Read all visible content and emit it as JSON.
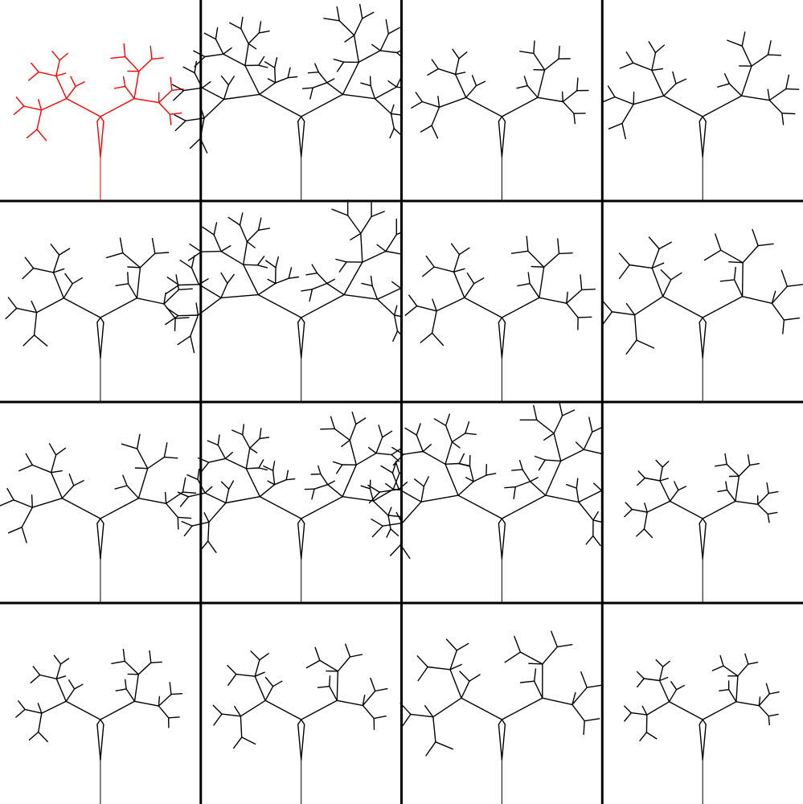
{
  "grid": {
    "rows": 4,
    "columns": 4
  },
  "colors": {
    "background": "#ffffff",
    "grid_line": "#000000",
    "selected_figure": "#ff0000",
    "figure": "#000000"
  },
  "figures": [
    {
      "index": 0,
      "selected": true,
      "depth": 3,
      "branch_angle_deg": 58,
      "ratio": 0.72,
      "spread": 0.65,
      "twist": 18
    },
    {
      "index": 1,
      "selected": false,
      "depth": 4,
      "branch_angle_deg": 46,
      "ratio": 0.76,
      "spread": 0.85,
      "twist": 34
    },
    {
      "index": 2,
      "selected": false,
      "depth": 3,
      "branch_angle_deg": 55,
      "ratio": 0.7,
      "spread": 0.7,
      "twist": 24
    },
    {
      "index": 3,
      "selected": false,
      "depth": 3,
      "branch_angle_deg": 52,
      "ratio": 0.71,
      "spread": 0.78,
      "twist": 28
    },
    {
      "index": 4,
      "selected": false,
      "depth": 3,
      "branch_angle_deg": 62,
      "ratio": 0.74,
      "spread": 0.72,
      "twist": 20
    },
    {
      "index": 5,
      "selected": false,
      "depth": 4,
      "branch_angle_deg": 44,
      "ratio": 0.77,
      "spread": 0.88,
      "twist": 38
    },
    {
      "index": 6,
      "selected": false,
      "depth": 3,
      "branch_angle_deg": 60,
      "ratio": 0.73,
      "spread": 0.74,
      "twist": 22
    },
    {
      "index": 7,
      "selected": false,
      "depth": 3,
      "branch_angle_deg": 66,
      "ratio": 0.75,
      "spread": 0.8,
      "twist": 16
    },
    {
      "index": 8,
      "selected": false,
      "depth": 3,
      "branch_angle_deg": 54,
      "ratio": 0.72,
      "spread": 0.76,
      "twist": 30
    },
    {
      "index": 9,
      "selected": false,
      "depth": 4,
      "branch_angle_deg": 48,
      "ratio": 0.74,
      "spread": 0.84,
      "twist": 32
    },
    {
      "index": 10,
      "selected": false,
      "depth": 4,
      "branch_angle_deg": 50,
      "ratio": 0.76,
      "spread": 0.9,
      "twist": 40
    },
    {
      "index": 11,
      "selected": false,
      "depth": 3,
      "branch_angle_deg": 58,
      "ratio": 0.68,
      "spread": 0.62,
      "twist": 14
    },
    {
      "index": 12,
      "selected": false,
      "depth": 3,
      "branch_angle_deg": 60,
      "ratio": 0.7,
      "spread": 0.66,
      "twist": 20
    },
    {
      "index": 13,
      "selected": false,
      "depth": 3,
      "branch_angle_deg": 64,
      "ratio": 0.72,
      "spread": 0.7,
      "twist": 12
    },
    {
      "index": 14,
      "selected": false,
      "depth": 3,
      "branch_angle_deg": 66,
      "ratio": 0.74,
      "spread": 0.82,
      "twist": 14
    },
    {
      "index": 15,
      "selected": false,
      "depth": 3,
      "branch_angle_deg": 62,
      "ratio": 0.68,
      "spread": 0.64,
      "twist": 12
    }
  ]
}
